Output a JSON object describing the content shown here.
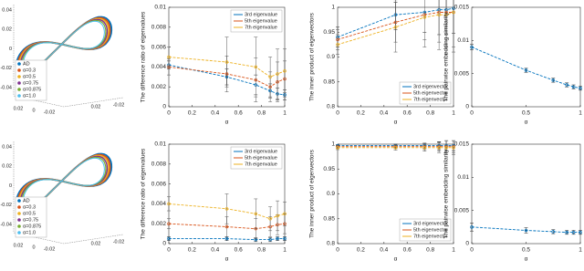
{
  "chart_data": [
    {
      "type": "curve3d",
      "zticks": [
        0.04,
        0.02,
        0,
        -0.02,
        -0.04
      ],
      "xticks": [
        0.02,
        0,
        -0.02
      ],
      "yticks": [
        0.02,
        -0.02
      ],
      "series": [
        {
          "name": "AD",
          "color": "#0072bd"
        },
        {
          "name": "α=0.3",
          "color": "#d95319"
        },
        {
          "name": "α=0.5",
          "color": "#edb120"
        },
        {
          "name": "α=0.75",
          "color": "#7e2f8e"
        },
        {
          "name": "α=0.875",
          "color": "#77ac30"
        },
        {
          "name": "α=1.0",
          "color": "#4dbeee"
        }
      ]
    },
    {
      "type": "errorbar",
      "ylabel": "The difference ratio of eigenvalues",
      "xlabel": "α",
      "legend": "upper right",
      "x": [
        0,
        0.5,
        0.75,
        0.875,
        0.9375,
        1
      ],
      "xlim": [
        0,
        1
      ],
      "xticks": [
        0,
        0.2,
        0.4,
        0.6,
        0.8,
        1
      ],
      "ylim": [
        0,
        0.01
      ],
      "yticks": [
        0,
        0.002,
        0.004,
        0.006,
        0.008,
        0.01
      ],
      "series": [
        {
          "name": "3rd eigenvalue",
          "color": "#0072bd",
          "values": [
            0.0042,
            0.003,
            0.0022,
            0.0016,
            0.0013,
            0.0012
          ],
          "errors": [
            0.0004,
            0.0008,
            0.001,
            0.0007,
            0.0006,
            0.0005
          ]
        },
        {
          "name": "5th eigenvalue",
          "color": "#d95319",
          "values": [
            0.004,
            0.0033,
            0.0027,
            0.002,
            0.0025,
            0.0028
          ],
          "errors": [
            0.0008,
            0.0018,
            0.0022,
            0.0015,
            0.002,
            0.0018
          ]
        },
        {
          "name": "7th eigenvalue",
          "color": "#edb120",
          "values": [
            0.005,
            0.0045,
            0.004,
            0.003,
            0.0033,
            0.0036
          ],
          "errors": [
            0.001,
            0.0025,
            0.003,
            0.002,
            0.0025,
            0.0022
          ]
        }
      ]
    },
    {
      "type": "errorbar",
      "ylabel": "The inner product of eigenvectors",
      "xlabel": "α",
      "legend": "lower right",
      "x": [
        0,
        0.5,
        0.75,
        0.875,
        0.9375,
        1
      ],
      "xlim": [
        0,
        1
      ],
      "xticks": [
        0,
        0.2,
        0.4,
        0.6,
        0.8,
        1
      ],
      "ylim": [
        0.8,
        1
      ],
      "yticks": [
        0.8,
        0.85,
        0.9,
        0.95,
        1
      ],
      "series": [
        {
          "name": "3rd eigenvector",
          "color": "#0072bd",
          "values": [
            0.94,
            0.985,
            0.99,
            0.995,
            0.995,
            0.998
          ],
          "errors": [
            0.02,
            0.03,
            0.04,
            0.05,
            0.05,
            0.05
          ]
        },
        {
          "name": "5th eigenvector",
          "color": "#d95319",
          "values": [
            0.935,
            0.97,
            0.985,
            0.99,
            0.99,
            0.99
          ],
          "errors": [
            0.02,
            0.04,
            0.05,
            0.06,
            0.07,
            0.07
          ]
        },
        {
          "name": "7th eigenvector",
          "color": "#edb120",
          "values": [
            0.925,
            0.96,
            0.98,
            0.985,
            0.985,
            0.99
          ],
          "errors": [
            0.02,
            0.05,
            0.06,
            0.07,
            0.08,
            0.08
          ]
        }
      ]
    },
    {
      "type": "errorbar",
      "ylabel": "The pairwise embedding similarity",
      "xlabel": "α",
      "x": [
        0,
        0.5,
        0.75,
        0.875,
        0.9375,
        1
      ],
      "xlim": [
        0,
        1
      ],
      "xticks": [
        0,
        0.5,
        1
      ],
      "ylim": [
        0,
        0.015
      ],
      "yticks": [
        0,
        0.005,
        0.01,
        0.015
      ],
      "series": [
        {
          "color": "#0072bd",
          "values": [
            0.009,
            0.0055,
            0.004,
            0.0033,
            0.003,
            0.0028
          ],
          "errors": [
            0.0004,
            0.0003,
            0.0003,
            0.0003,
            0.0003,
            0.0003
          ]
        }
      ]
    },
    {
      "type": "curve3d",
      "zticks": [
        0.04,
        0.02,
        0,
        -0.02,
        -0.04
      ],
      "xticks": [
        0.02,
        0,
        -0.02
      ],
      "yticks": [
        0.02,
        -0.02
      ],
      "series": [
        {
          "name": "AD",
          "color": "#0072bd"
        },
        {
          "name": "α=0.3",
          "color": "#d95319"
        },
        {
          "name": "α=0.5",
          "color": "#edb120"
        },
        {
          "name": "α=0.75",
          "color": "#7e2f8e"
        },
        {
          "name": "α=0.875",
          "color": "#77ac30"
        },
        {
          "name": "α=1.0",
          "color": "#4dbeee"
        }
      ]
    },
    {
      "type": "errorbar",
      "ylabel": "The difference ratio of eigenvalues",
      "xlabel": "α",
      "legend": "upper right",
      "x": [
        0,
        0.5,
        0.75,
        0.875,
        0.9375,
        1
      ],
      "xlim": [
        0,
        1
      ],
      "xticks": [
        0,
        0.2,
        0.4,
        0.6,
        0.8,
        1
      ],
      "ylim": [
        0,
        0.01
      ],
      "yticks": [
        0,
        0.002,
        0.004,
        0.006,
        0.008,
        0.01
      ],
      "series": [
        {
          "name": "3rd eigenvalue",
          "color": "#0072bd",
          "values": [
            0.0005,
            0.0005,
            0.0004,
            0.0004,
            0.0005,
            0.0005
          ],
          "errors": [
            0.0002,
            0.0002,
            0.0002,
            0.0002,
            0.0002,
            0.0002
          ]
        },
        {
          "name": "5th eigenvalue",
          "color": "#d95319",
          "values": [
            0.002,
            0.0017,
            0.0015,
            0.0017,
            0.0019,
            0.002
          ],
          "errors": [
            0.0005,
            0.001,
            0.001,
            0.001,
            0.001,
            0.001
          ]
        },
        {
          "name": "7th eigenvalue",
          "color": "#edb120",
          "values": [
            0.004,
            0.0035,
            0.003,
            0.0025,
            0.0028,
            0.003
          ],
          "errors": [
            0.0007,
            0.0015,
            0.0015,
            0.0012,
            0.0015,
            0.0012
          ]
        }
      ]
    },
    {
      "type": "errorbar",
      "ylabel": "The inner product of eigenvectors",
      "xlabel": "α",
      "legend": "lower right",
      "x": [
        0,
        0.5,
        0.75,
        0.875,
        0.9375,
        1
      ],
      "xlim": [
        0,
        1
      ],
      "xticks": [
        0,
        0.2,
        0.4,
        0.6,
        0.8,
        1
      ],
      "ylim": [
        0.8,
        1
      ],
      "yticks": [
        0.8,
        0.85,
        0.9,
        0.95,
        1
      ],
      "series": [
        {
          "name": "3rd eigenvector",
          "color": "#0072bd",
          "values": [
            0.997,
            0.997,
            0.997,
            0.997,
            0.997,
            0.997
          ],
          "errors": [
            0.002,
            0.003,
            0.005,
            0.008,
            0.01,
            0.01
          ]
        },
        {
          "name": "5th eigenvector",
          "color": "#d95319",
          "values": [
            0.995,
            0.995,
            0.995,
            0.995,
            0.995,
            0.995
          ],
          "errors": [
            0.003,
            0.004,
            0.006,
            0.009,
            0.012,
            0.012
          ]
        },
        {
          "name": "7th eigenvector",
          "color": "#edb120",
          "values": [
            0.993,
            0.993,
            0.993,
            0.993,
            0.993,
            0.993
          ],
          "errors": [
            0.004,
            0.005,
            0.007,
            0.01,
            0.014,
            0.014
          ]
        }
      ]
    },
    {
      "type": "errorbar",
      "ylabel": "The pairwise embedding similarity",
      "xlabel": "α",
      "x": [
        0,
        0.5,
        0.75,
        0.875,
        0.9375,
        1
      ],
      "xlim": [
        0,
        1
      ],
      "xticks": [
        0,
        0.5,
        1
      ],
      "ylim": [
        0,
        0.015
      ],
      "yticks": [
        0,
        0.005,
        0.01,
        0.015
      ],
      "series": [
        {
          "color": "#0072bd",
          "values": [
            0.0025,
            0.002,
            0.0018,
            0.0017,
            0.0017,
            0.0017
          ],
          "errors": [
            0.0006,
            0.0004,
            0.0003,
            0.0003,
            0.0003,
            0.0003
          ]
        }
      ]
    }
  ]
}
